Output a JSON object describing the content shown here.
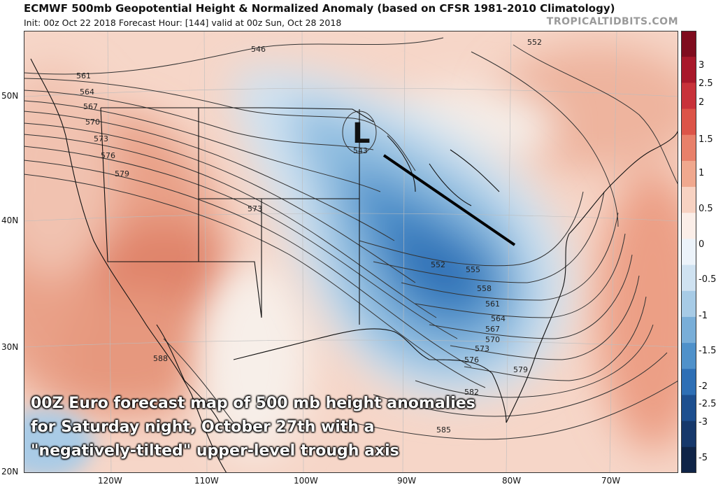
{
  "header": {
    "title": "ECMWF 500mb Geopotential Height & Normalized Anomaly (based on CFSR 1981-2010 Climatology)",
    "subtitle": "Init: 00z Oct 22 2018   Forecast Hour: [144]   valid at 00z Sun, Oct 28 2018",
    "brand": "TROPICALTIDBITS.COM"
  },
  "map": {
    "lat_labels": [
      "50N",
      "40N",
      "30N",
      "20N"
    ],
    "lon_labels": [
      "120W",
      "110W",
      "100W",
      "90W",
      "80W",
      "70W"
    ],
    "low_marker": "L",
    "low_value": "543",
    "contour_labels": [
      "546",
      "552",
      "561",
      "564",
      "567",
      "570",
      "573",
      "576",
      "579",
      "573",
      "552",
      "555",
      "558",
      "561",
      "564",
      "567",
      "570",
      "573",
      "576",
      "579",
      "582",
      "585",
      "588"
    ],
    "trough_axis": "negatively-tilted"
  },
  "colorbar": {
    "ticks": [
      "3",
      "2.5",
      "2",
      "1.5",
      "1",
      "0.5",
      "0",
      "-0.5",
      "-1",
      "-1.5",
      "-2",
      "-2.5",
      "-3",
      "-5"
    ]
  },
  "caption": {
    "line1": "00Z Euro forecast map of 500 mb height anomalies",
    "line2": "for Saturday night, October 27th with a",
    "line3": "\"negatively-tilted\" upper-level trough axis"
  },
  "colors": {
    "positive_anomaly": "#e8917a",
    "negative_anomaly": "#2e6fb5",
    "contour": "#333333",
    "trough_axis": "#000000"
  }
}
